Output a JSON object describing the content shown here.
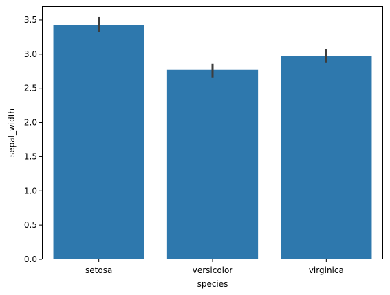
{
  "chart_data": {
    "type": "bar",
    "title": "",
    "xlabel": "species",
    "ylabel": "sepal_width",
    "categories": [
      "setosa",
      "versicolor",
      "virginica"
    ],
    "values": [
      3.428,
      2.77,
      2.974
    ],
    "error_bars": [
      {
        "low": 3.32,
        "high": 3.54
      },
      {
        "low": 2.66,
        "high": 2.86
      },
      {
        "low": 2.87,
        "high": 3.07
      }
    ],
    "ylim": [
      0,
      3.7
    ],
    "yticks": [
      "0.0",
      "0.5",
      "1.0",
      "1.5",
      "2.0",
      "2.5",
      "3.0",
      "3.5"
    ],
    "grid": false,
    "legend": "none",
    "bar_color": "#2e78ad",
    "error_color": "#3d3d3d"
  }
}
